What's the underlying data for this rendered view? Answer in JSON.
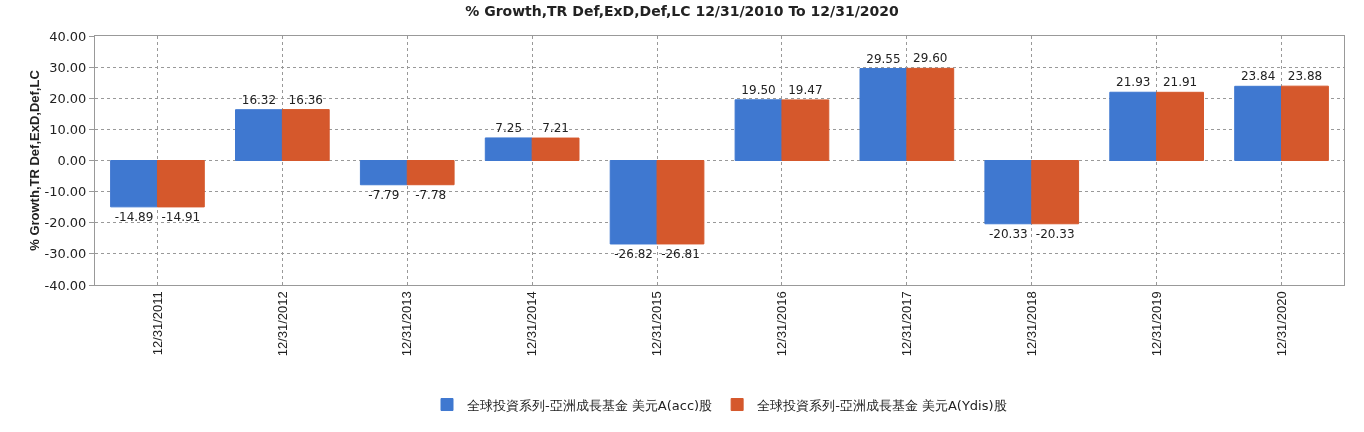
{
  "chart_data": {
    "type": "bar",
    "title": "% Growth,TR Def,ExD,Def,LC 12/31/2010 To 12/31/2020",
    "ylabel": "% Growth,TR Def,ExD,Def,LC",
    "categories": [
      "12/31/2011",
      "12/31/2012",
      "12/31/2013",
      "12/31/2014",
      "12/31/2015",
      "12/31/2016",
      "12/31/2017",
      "12/31/2018",
      "12/31/2019",
      "12/31/2020"
    ],
    "series": [
      {
        "name": "全球投資系列-亞洲成長基金 美元A(acc)股",
        "color": "#3f78d0",
        "values": [
          -14.89,
          16.32,
          -7.79,
          7.25,
          -26.82,
          19.5,
          29.55,
          -20.33,
          21.93,
          23.84
        ],
        "value_labels": [
          "-14.89",
          "16.32",
          "-7.79",
          "7.25",
          "-26.82",
          "19.50",
          "29.55",
          "-20.33",
          "21.93",
          "23.84"
        ]
      },
      {
        "name": "全球投資系列-亞洲成長基金 美元A(Ydis)股",
        "color": "#d5582c",
        "values": [
          -14.91,
          16.36,
          -7.78,
          7.21,
          -26.81,
          19.47,
          29.6,
          -20.33,
          21.91,
          23.88
        ],
        "value_labels": [
          "-14.91",
          "16.36",
          "-7.78",
          "7.21",
          "-26.81",
          "19.47",
          "29.60",
          "-20.33",
          "21.91",
          "23.88"
        ]
      }
    ],
    "ylim": [
      -40,
      40
    ],
    "yticks": [
      {
        "value": -40,
        "label": "-40.00"
      },
      {
        "value": -30,
        "label": "-30.00"
      },
      {
        "value": -20,
        "label": "-20.00"
      },
      {
        "value": -10,
        "label": "-10.00"
      },
      {
        "value": 0,
        "label": "0.00"
      },
      {
        "value": 10,
        "label": "10.00"
      },
      {
        "value": 20,
        "label": "20.00"
      },
      {
        "value": 30,
        "label": "30.00"
      },
      {
        "value": 40,
        "label": "40.00"
      }
    ],
    "grid": true,
    "legend": "bottom"
  }
}
